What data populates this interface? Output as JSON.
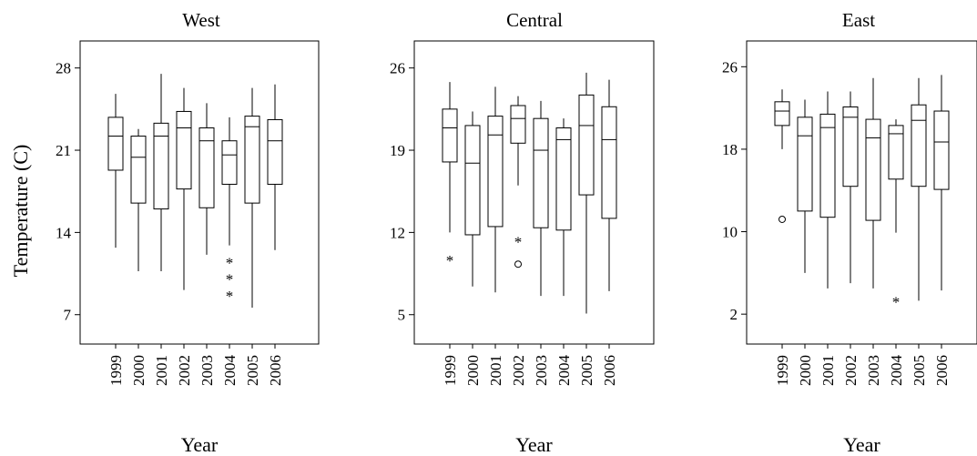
{
  "chart_data": [
    {
      "type": "box",
      "title": "West",
      "xlabel": "Year",
      "ylabel": "Temperature (C)",
      "yticks": [
        7,
        14,
        21,
        28
      ],
      "ylim": [
        4.5,
        30.3
      ],
      "categories": [
        "1999",
        "2000",
        "2001",
        "2002",
        "2003",
        "2004",
        "2005",
        "2006"
      ],
      "boxes": [
        {
          "min": 12.7,
          "q1": 19.3,
          "median": 22.2,
          "q3": 23.8,
          "max": 25.8,
          "outliers": []
        },
        {
          "min": 10.7,
          "q1": 16.5,
          "median": 20.4,
          "q3": 22.2,
          "max": 22.8,
          "outliers": []
        },
        {
          "min": 10.7,
          "q1": 16.0,
          "median": 22.2,
          "q3": 23.3,
          "max": 27.5,
          "outliers": []
        },
        {
          "min": 9.1,
          "q1": 17.7,
          "median": 22.9,
          "q3": 24.3,
          "max": 26.3,
          "outliers": []
        },
        {
          "min": 12.1,
          "q1": 16.1,
          "median": 21.8,
          "q3": 22.9,
          "max": 25.0,
          "outliers": []
        },
        {
          "min": 12.9,
          "q1": 18.1,
          "median": 20.6,
          "q3": 21.8,
          "max": 23.8,
          "outliers": [
            {
              "value": 11.5,
              "marker": "*"
            },
            {
              "value": 10.1,
              "marker": "*"
            },
            {
              "value": 8.7,
              "marker": "*"
            }
          ]
        },
        {
          "min": 7.6,
          "q1": 16.5,
          "median": 23.0,
          "q3": 23.9,
          "max": 26.3,
          "outliers": []
        },
        {
          "min": 12.5,
          "q1": 18.1,
          "median": 21.8,
          "q3": 23.6,
          "max": 26.6,
          "outliers": []
        }
      ]
    },
    {
      "type": "box",
      "title": "Central",
      "xlabel": "Year",
      "ylabel": "",
      "yticks": [
        5,
        12,
        19,
        26
      ],
      "ylim": [
        2.5,
        28.3
      ],
      "categories": [
        "1999",
        "2000",
        "2001",
        "2002",
        "2003",
        "2004",
        "2005",
        "2006"
      ],
      "boxes": [
        {
          "min": 12.0,
          "q1": 18.0,
          "median": 20.9,
          "q3": 22.5,
          "max": 24.8,
          "outliers": [
            {
              "value": 9.7,
              "marker": "*"
            }
          ]
        },
        {
          "min": 7.4,
          "q1": 11.8,
          "median": 17.9,
          "q3": 21.1,
          "max": 22.3,
          "outliers": []
        },
        {
          "min": 6.9,
          "q1": 12.5,
          "median": 20.3,
          "q3": 21.9,
          "max": 24.4,
          "outliers": []
        },
        {
          "min": 16.0,
          "q1": 19.6,
          "median": 21.7,
          "q3": 22.8,
          "max": 23.6,
          "outliers": [
            {
              "value": 11.3,
              "marker": "*"
            },
            {
              "value": 9.3,
              "marker": "o"
            }
          ]
        },
        {
          "min": 6.6,
          "q1": 12.4,
          "median": 19.0,
          "q3": 21.7,
          "max": 23.2,
          "outliers": []
        },
        {
          "min": 6.6,
          "q1": 12.2,
          "median": 19.9,
          "q3": 20.9,
          "max": 21.7,
          "outliers": []
        },
        {
          "min": 5.1,
          "q1": 15.2,
          "median": 21.1,
          "q3": 23.7,
          "max": 25.6,
          "outliers": []
        },
        {
          "min": 7.0,
          "q1": 13.2,
          "median": 19.9,
          "q3": 22.7,
          "max": 25.0,
          "outliers": []
        }
      ]
    },
    {
      "type": "box",
      "title": "East",
      "xlabel": "Year",
      "ylabel": "",
      "yticks": [
        2,
        10,
        18,
        26
      ],
      "ylim": [
        -0.9,
        28.5
      ],
      "categories": [
        "1999",
        "2000",
        "2001",
        "2002",
        "2003",
        "2004",
        "2005",
        "2006"
      ],
      "boxes": [
        {
          "min": 18.0,
          "q1": 20.3,
          "median": 21.7,
          "q3": 22.6,
          "max": 23.8,
          "outliers": [
            {
              "value": 11.2,
              "marker": "o"
            }
          ]
        },
        {
          "min": 6.0,
          "q1": 12.0,
          "median": 19.3,
          "q3": 21.1,
          "max": 22.8,
          "outliers": []
        },
        {
          "min": 4.5,
          "q1": 11.4,
          "median": 20.1,
          "q3": 21.4,
          "max": 23.6,
          "outliers": []
        },
        {
          "min": 5.0,
          "q1": 14.4,
          "median": 21.1,
          "q3": 22.1,
          "max": 23.6,
          "outliers": []
        },
        {
          "min": 4.5,
          "q1": 11.1,
          "median": 19.1,
          "q3": 20.9,
          "max": 24.9,
          "outliers": []
        },
        {
          "min": 9.9,
          "q1": 15.1,
          "median": 19.5,
          "q3": 20.3,
          "max": 20.9,
          "outliers": [
            {
              "value": 3.3,
              "marker": "*"
            }
          ]
        },
        {
          "min": 3.3,
          "q1": 14.4,
          "median": 20.8,
          "q3": 22.3,
          "max": 24.9,
          "outliers": []
        },
        {
          "min": 4.3,
          "q1": 14.1,
          "median": 18.7,
          "q3": 21.7,
          "max": 25.2,
          "outliers": []
        }
      ]
    }
  ]
}
